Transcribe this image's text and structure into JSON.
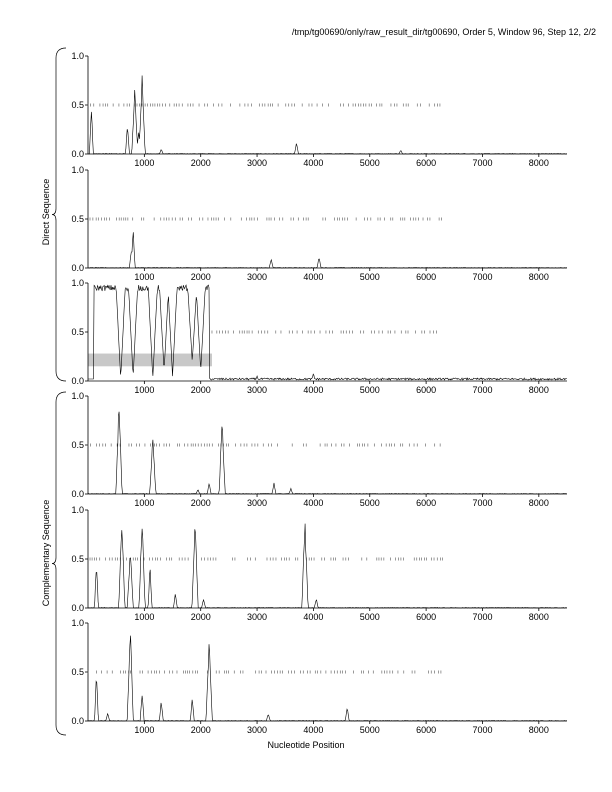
{
  "figure": {
    "title": "/tmp/tg00690/only/raw_result_dir/tg00690, Order 5, Window 96, Step 12, 2/2",
    "xlabel": "Nucleotide Position",
    "group_labels": [
      "Direct Sequence",
      "Complementary Sequence"
    ]
  },
  "chart_data": [
    {
      "type": "line",
      "panel": 1,
      "group": "Direct Sequence",
      "xlim": [
        0,
        8500
      ],
      "ylim": [
        0,
        1.0
      ],
      "xticks": [
        1000,
        2000,
        3000,
        4000,
        5000,
        6000,
        7000,
        8000
      ],
      "yticks": [
        0.0,
        0.5,
        1.0
      ],
      "peaks": [
        [
          60,
          0.5
        ],
        [
          700,
          0.3
        ],
        [
          830,
          0.68
        ],
        [
          900,
          0.25
        ],
        [
          960,
          0.82
        ],
        [
          1300,
          0.05
        ],
        [
          3700,
          0.12
        ],
        [
          5550,
          0.04
        ]
      ],
      "dashed_level": 0.5,
      "dashed_range": [
        0,
        6300
      ]
    },
    {
      "type": "line",
      "panel": 2,
      "group": "Direct Sequence",
      "xlim": [
        0,
        8500
      ],
      "ylim": [
        0,
        1.0
      ],
      "xticks": [
        1000,
        2000,
        3000,
        4000,
        5000,
        6000,
        7000,
        8000
      ],
      "yticks": [
        0.0,
        0.5,
        1.0
      ],
      "peaks": [
        [
          770,
          0.2
        ],
        [
          800,
          0.42
        ],
        [
          3250,
          0.1
        ],
        [
          4100,
          0.12
        ]
      ],
      "dashed_level": 0.5,
      "dashed_range": [
        0,
        6300
      ]
    },
    {
      "type": "line",
      "panel": 3,
      "group": "Direct Sequence",
      "xlim": [
        0,
        8500
      ],
      "ylim": [
        0,
        1.0
      ],
      "xticks": [
        1000,
        2000,
        3000,
        4000,
        5000,
        6000,
        7000,
        8000
      ],
      "yticks": [
        0.0,
        0.5,
        1.0
      ],
      "highlight": {
        "x": [
          0,
          2200
        ],
        "y": [
          0.15,
          0.28
        ]
      },
      "high_region": [
        100,
        2150
      ],
      "dips": [
        [
          580,
          0.02
        ],
        [
          800,
          0.04
        ],
        [
          1150,
          0.03
        ],
        [
          1350,
          0.1
        ],
        [
          1500,
          0.05
        ],
        [
          1850,
          0.2
        ],
        [
          2000,
          0.1
        ]
      ],
      "peaks": [
        [
          3000,
          0.05
        ],
        [
          4000,
          0.08
        ]
      ],
      "dashed_level": 0.5,
      "dashed_range": [
        2200,
        6300
      ]
    },
    {
      "type": "line",
      "panel": 4,
      "group": "Complementary Sequence",
      "xlim": [
        0,
        8500
      ],
      "ylim": [
        0,
        1.0
      ],
      "xticks": [
        1000,
        2000,
        3000,
        4000,
        5000,
        6000,
        7000,
        8000
      ],
      "yticks": [
        0.0,
        0.5,
        1.0
      ],
      "peaks": [
        [
          550,
          0.98
        ],
        [
          1150,
          0.6
        ],
        [
          1950,
          0.05
        ],
        [
          2150,
          0.12
        ],
        [
          2380,
          0.78
        ],
        [
          3300,
          0.12
        ],
        [
          3600,
          0.06
        ]
      ],
      "dashed_level": 0.5,
      "dashed_range": [
        0,
        6300
      ]
    },
    {
      "type": "line",
      "panel": 5,
      "group": "Complementary Sequence",
      "xlim": [
        0,
        8500
      ],
      "ylim": [
        0,
        1.0
      ],
      "xticks": [
        1000,
        2000,
        3000,
        4000,
        5000,
        6000,
        7000,
        8000
      ],
      "yticks": [
        0.0,
        0.5,
        1.0
      ],
      "peaks": [
        [
          150,
          0.5
        ],
        [
          600,
          0.92
        ],
        [
          750,
          0.6
        ],
        [
          960,
          0.92
        ],
        [
          1100,
          0.45
        ],
        [
          1550,
          0.15
        ],
        [
          1900,
          0.92
        ],
        [
          2050,
          0.1
        ],
        [
          3850,
          0.92
        ],
        [
          4050,
          0.1
        ]
      ],
      "dashed_level": 0.5,
      "dashed_range": [
        0,
        6300
      ]
    },
    {
      "type": "line",
      "panel": 6,
      "group": "Complementary Sequence",
      "xlim": [
        0,
        8500
      ],
      "ylim": [
        0,
        1.0
      ],
      "xticks": [
        1000,
        2000,
        3000,
        4000,
        5000,
        6000,
        7000,
        8000
      ],
      "yticks": [
        0.0,
        0.5,
        1.0
      ],
      "peaks": [
        [
          150,
          0.5
        ],
        [
          350,
          0.08
        ],
        [
          750,
          0.98
        ],
        [
          960,
          0.3
        ],
        [
          1300,
          0.22
        ],
        [
          1850,
          0.25
        ],
        [
          2150,
          0.88
        ],
        [
          3200,
          0.08
        ],
        [
          4600,
          0.15
        ]
      ],
      "dashed_level": 0.5,
      "dashed_range": [
        0,
        6300
      ]
    }
  ]
}
